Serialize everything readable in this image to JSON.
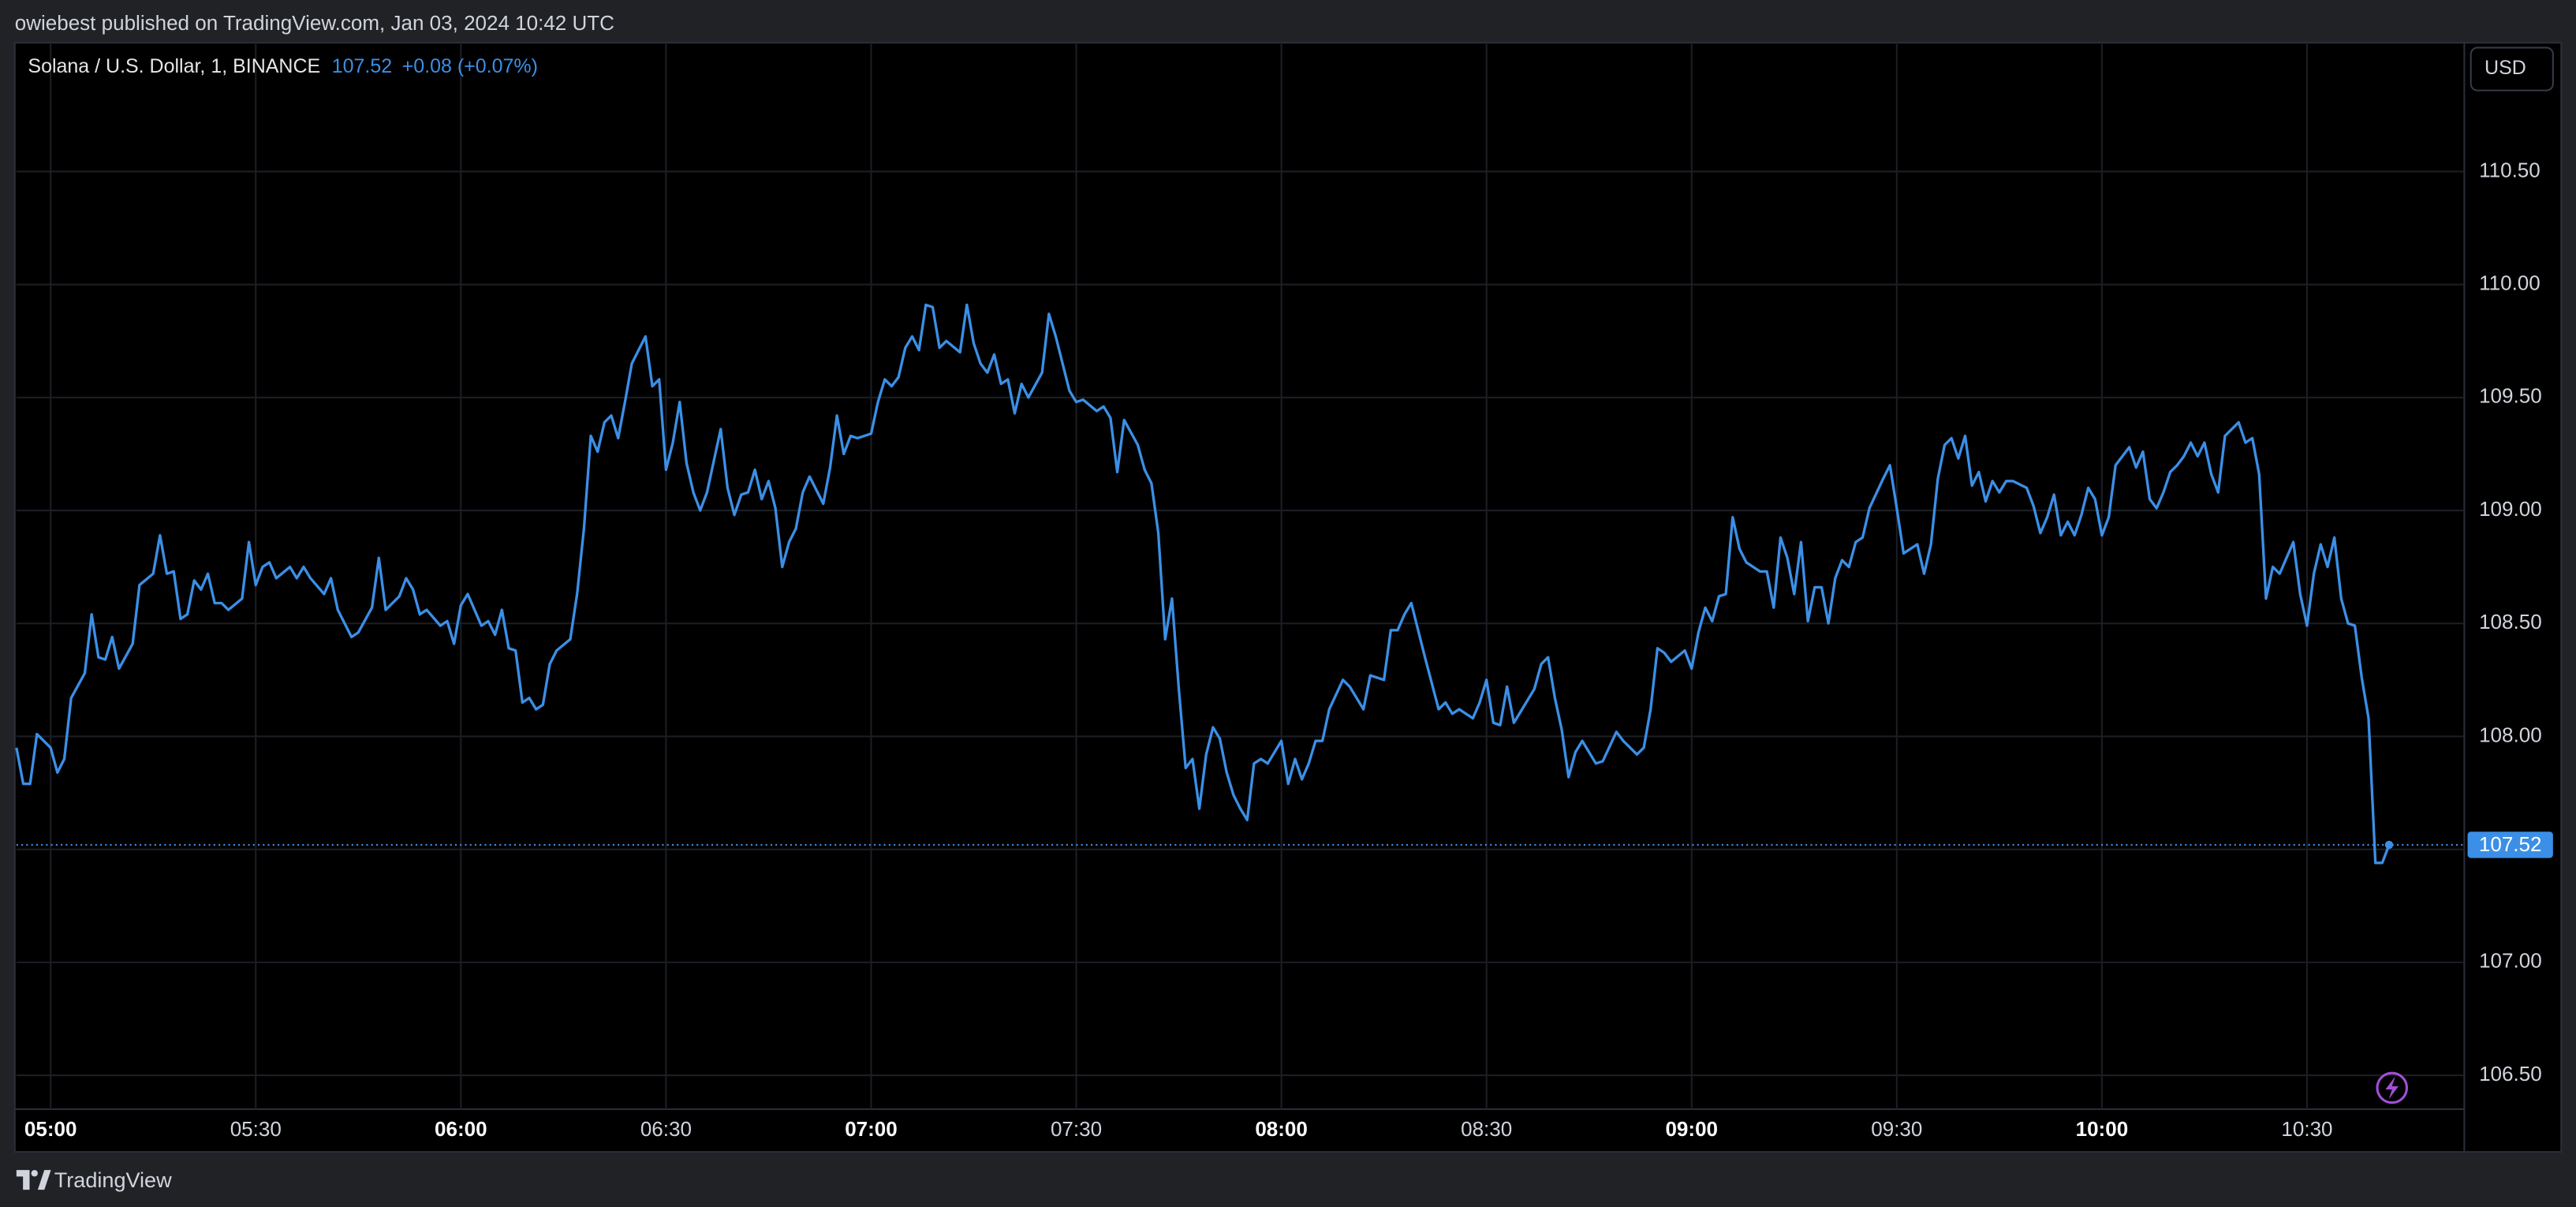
{
  "header": {
    "publisher": "owiebest published on TradingView.com, Jan 03, 2024 10:42 UTC"
  },
  "chart_data": {
    "type": "line",
    "title": "Solana / U.S. Dollar, 1, BINANCE",
    "last_price": 107.52,
    "change": "+0.08 (+0.07%)",
    "currency": "USD",
    "color": "#3b8fe6",
    "grid": true,
    "xlim": [
      "04:55",
      "10:53"
    ],
    "ylim": [
      106.35,
      111.07
    ],
    "yticks": [
      {
        "value": 106.5,
        "label": "106.50"
      },
      {
        "value": 107,
        "label": "107.00"
      },
      {
        "value": 107.5,
        "label": "107.50"
      },
      {
        "value": 108,
        "label": "108.00"
      },
      {
        "value": 108.5,
        "label": "108.50"
      },
      {
        "value": 109,
        "label": "109.00"
      },
      {
        "value": 109.5,
        "label": "109.50"
      },
      {
        "value": 110,
        "label": "110.00"
      },
      {
        "value": 110.5,
        "label": "110.50"
      }
    ],
    "xticks": [
      "05:00",
      "05:30",
      "06:00",
      "06:30",
      "07:00",
      "07:30",
      "08:00",
      "08:30",
      "09:00",
      "09:30",
      "10:00",
      "10:30"
    ],
    "x": [
      "04:55",
      "04:56",
      "04:57",
      "04:58",
      "05:00",
      "05:01",
      "05:02",
      "05:03",
      "05:05",
      "05:06",
      "05:07",
      "05:08",
      "05:09",
      "05:10",
      "05:12",
      "05:13",
      "05:15",
      "05:16",
      "05:17",
      "05:18",
      "05:19",
      "05:20",
      "05:21",
      "05:22",
      "05:23",
      "05:24",
      "05:25",
      "05:26",
      "05:28",
      "05:29",
      "05:30",
      "05:31",
      "05:32",
      "05:33",
      "05:35",
      "05:36",
      "05:37",
      "05:38",
      "05:40",
      "05:41",
      "05:42",
      "05:44",
      "05:45",
      "05:47",
      "05:48",
      "05:49",
      "05:51",
      "05:52",
      "05:53",
      "05:54",
      "05:55",
      "05:57",
      "05:58",
      "05:59",
      "06:00",
      "06:01",
      "06:03",
      "06:04",
      "06:05",
      "06:06",
      "06:07",
      "06:08",
      "06:09",
      "06:10",
      "06:11",
      "06:12",
      "06:13",
      "06:14",
      "06:16",
      "06:17",
      "06:18",
      "06:19",
      "06:20",
      "06:21",
      "06:22",
      "06:23",
      "06:24",
      "06:25",
      "06:27",
      "06:28",
      "06:29",
      "06:30",
      "06:31",
      "06:32",
      "06:33",
      "06:34",
      "06:35",
      "06:36",
      "06:38",
      "06:39",
      "06:40",
      "06:41",
      "06:42",
      "06:43",
      "06:44",
      "06:45",
      "06:46",
      "06:47",
      "06:48",
      "06:49",
      "06:50",
      "06:51",
      "06:53",
      "06:54",
      "06:55",
      "06:56",
      "06:57",
      "06:58",
      "07:00",
      "07:01",
      "07:02",
      "07:03",
      "07:04",
      "07:05",
      "07:06",
      "07:07",
      "07:08",
      "07:09",
      "07:10",
      "07:11",
      "07:13",
      "07:14",
      "07:15",
      "07:16",
      "07:17",
      "07:18",
      "07:19",
      "07:20",
      "07:21",
      "07:22",
      "07:23",
      "07:25",
      "07:26",
      "07:27",
      "07:29",
      "07:30",
      "07:31",
      "07:33",
      "07:34",
      "07:35",
      "07:36",
      "07:37",
      "07:39",
      "07:40",
      "07:41",
      "07:42",
      "07:43",
      "07:44",
      "07:45",
      "07:46",
      "07:47",
      "07:48",
      "07:49",
      "07:50",
      "07:51",
      "07:52",
      "07:53",
      "07:54",
      "07:55",
      "07:56",
      "07:57",
      "07:58",
      "08:00",
      "08:01",
      "08:02",
      "08:03",
      "08:04",
      "08:05",
      "08:06",
      "08:07",
      "08:09",
      "08:10",
      "08:12",
      "08:13",
      "08:15",
      "08:16",
      "08:17",
      "08:18",
      "08:19",
      "08:20",
      "08:21",
      "08:23",
      "08:24",
      "08:25",
      "08:26",
      "08:28",
      "08:29",
      "08:30",
      "08:31",
      "08:32",
      "08:33",
      "08:34",
      "08:35",
      "08:37",
      "08:38",
      "08:39",
      "08:40",
      "08:41",
      "08:42",
      "08:43",
      "08:44",
      "08:46",
      "08:47",
      "08:49",
      "08:50",
      "08:52",
      "08:53",
      "08:54",
      "08:55",
      "08:56",
      "08:57",
      "08:59",
      "09:00",
      "09:01",
      "09:02",
      "09:03",
      "09:04",
      "09:05",
      "09:06",
      "09:07",
      "09:08",
      "09:10",
      "09:11",
      "09:12",
      "09:13",
      "09:14",
      "09:15",
      "09:16",
      "09:17",
      "09:18",
      "09:19",
      "09:20",
      "09:21",
      "09:22",
      "09:23",
      "09:24",
      "09:25",
      "09:26",
      "09:28",
      "09:29",
      "09:30",
      "09:31",
      "09:33",
      "09:34",
      "09:35",
      "09:36",
      "09:37",
      "09:38",
      "09:39",
      "09:40",
      "09:41",
      "09:42",
      "09:43",
      "09:44",
      "09:45",
      "09:46",
      "09:47",
      "09:49",
      "09:50",
      "09:51",
      "09:52",
      "09:53",
      "09:54",
      "09:55",
      "09:56",
      "09:57",
      "09:58",
      "09:59",
      "10:00",
      "10:01",
      "10:02",
      "10:04",
      "10:05",
      "10:06",
      "10:07",
      "10:08",
      "10:09",
      "10:10",
      "10:11",
      "10:12",
      "10:13",
      "10:14",
      "10:15",
      "10:16",
      "10:17",
      "10:18",
      "10:20",
      "10:21",
      "10:22",
      "10:23",
      "10:24",
      "10:25",
      "10:26",
      "10:27",
      "10:28",
      "10:29",
      "10:30",
      "10:31",
      "10:32",
      "10:33",
      "10:34",
      "10:35",
      "10:36",
      "10:37",
      "10:38",
      "10:39",
      "10:40",
      "10:41",
      "10:42"
    ],
    "values": [
      107.95,
      107.79,
      107.79,
      108.01,
      107.95,
      107.84,
      107.9,
      108.17,
      108.28,
      108.54,
      108.35,
      108.34,
      108.44,
      108.3,
      108.41,
      108.67,
      108.72,
      108.89,
      108.72,
      108.73,
      108.52,
      108.54,
      108.69,
      108.65,
      108.72,
      108.59,
      108.59,
      108.56,
      108.61,
      108.86,
      108.67,
      108.75,
      108.77,
      108.7,
      108.75,
      108.7,
      108.75,
      108.7,
      108.63,
      108.7,
      108.56,
      108.44,
      108.46,
      108.57,
      108.79,
      108.56,
      108.62,
      108.7,
      108.65,
      108.54,
      108.56,
      108.49,
      108.51,
      108.41,
      108.58,
      108.63,
      108.49,
      108.51,
      108.45,
      108.56,
      108.39,
      108.38,
      108.15,
      108.17,
      108.12,
      108.14,
      108.32,
      108.38,
      108.43,
      108.63,
      108.92,
      109.33,
      109.26,
      109.39,
      109.42,
      109.32,
      109.48,
      109.65,
      109.77,
      109.55,
      109.58,
      109.18,
      109.3,
      109.48,
      109.21,
      109.08,
      109.0,
      109.08,
      109.36,
      109.1,
      108.98,
      109.07,
      109.08,
      109.18,
      109.05,
      109.13,
      109.01,
      108.75,
      108.86,
      108.92,
      109.08,
      109.15,
      109.03,
      109.19,
      109.42,
      109.25,
      109.33,
      109.32,
      109.34,
      109.48,
      109.58,
      109.55,
      109.59,
      109.72,
      109.77,
      109.71,
      109.91,
      109.9,
      109.72,
      109.75,
      109.7,
      109.91,
      109.74,
      109.65,
      109.61,
      109.69,
      109.56,
      109.58,
      109.43,
      109.56,
      109.5,
      109.61,
      109.87,
      109.77,
      109.53,
      109.48,
      109.49,
      109.44,
      109.46,
      109.41,
      109.17,
      109.4,
      109.29,
      109.18,
      109.12,
      108.9,
      108.43,
      108.61,
      108.21,
      107.86,
      107.9,
      107.68,
      107.92,
      108.04,
      107.99,
      107.84,
      107.74,
      107.68,
      107.63,
      107.88,
      107.9,
      107.88,
      107.98,
      107.79,
      107.9,
      107.81,
      107.88,
      107.98,
      107.98,
      108.12,
      108.25,
      108.22,
      108.12,
      108.27,
      108.25,
      108.47,
      108.47,
      108.54,
      108.59,
      108.47,
      108.35,
      108.12,
      108.15,
      108.1,
      108.12,
      108.08,
      108.15,
      108.25,
      108.06,
      108.05,
      108.22,
      108.06,
      108.11,
      108.21,
      108.32,
      108.35,
      108.17,
      108.03,
      107.82,
      107.93,
      107.98,
      107.88,
      107.89,
      108.02,
      107.98,
      107.92,
      107.95,
      108.12,
      108.39,
      108.37,
      108.33,
      108.38,
      108.3,
      108.46,
      108.57,
      108.51,
      108.62,
      108.63,
      108.97,
      108.83,
      108.77,
      108.73,
      108.73,
      108.57,
      108.88,
      108.79,
      108.63,
      108.86,
      108.51,
      108.66,
      108.66,
      108.5,
      108.7,
      108.78,
      108.75,
      108.86,
      108.88,
      109.01,
      109.14,
      109.2,
      109.01,
      108.81,
      108.85,
      108.72,
      108.85,
      109.14,
      109.29,
      109.32,
      109.23,
      109.33,
      109.11,
      109.17,
      109.04,
      109.13,
      109.08,
      109.13,
      109.13,
      109.1,
      109.02,
      108.9,
      108.97,
      109.07,
      108.89,
      108.95,
      108.89,
      108.98,
      109.1,
      109.05,
      108.89,
      108.97,
      109.2,
      109.28,
      109.19,
      109.26,
      109.05,
      109.01,
      109.08,
      109.17,
      109.2,
      109.24,
      109.3,
      109.24,
      109.3,
      109.16,
      109.08,
      109.33,
      109.39,
      109.3,
      109.32,
      109.16,
      108.61,
      108.75,
      108.72,
      108.79,
      108.86,
      108.63,
      108.49,
      108.72,
      108.85,
      108.75,
      108.88,
      108.61,
      108.5,
      108.49,
      108.26,
      108.08,
      107.44,
      107.44,
      107.52
    ]
  },
  "footer": {
    "brand": "TradingView"
  }
}
